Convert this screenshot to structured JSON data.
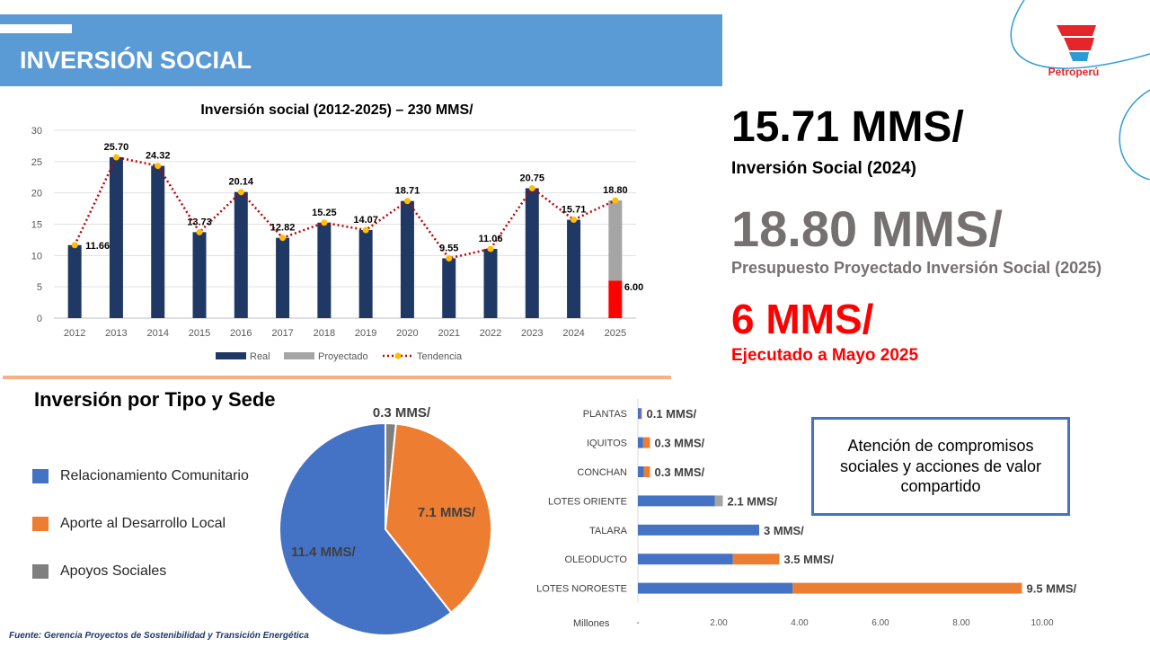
{
  "header": {
    "title": "INVERSIÓN SOCIAL"
  },
  "logo": {
    "name": "Petroperú"
  },
  "kpis": [
    {
      "value": "15.71 MMS/",
      "label": "Inversión Social (2024)"
    },
    {
      "value": "18.80 MMS/",
      "label": "Presupuesto Proyectado Inversión Social (2025)"
    },
    {
      "value": "6 MMS/",
      "label": "Ejecutado a Mayo 2025"
    }
  ],
  "section2_title": "Inversión por Tipo y Sede",
  "callout": "Atención de compromisos sociales y acciones de valor compartido",
  "source": "Fuente: Gerencia Proyectos de Sostenibilidad y Transición Energética",
  "colors": {
    "navy": "#203864",
    "gray": "#a5a5a5",
    "red": "#ff0000",
    "blue": "#4472c4",
    "orange": "#ed7d31",
    "pie_gray": "#7f7f7f",
    "trend": "#c00000",
    "marker": "#ffc000",
    "header": "#5b9bd5"
  },
  "chart_data": [
    {
      "type": "bar",
      "title": "Inversión social (2012-2025) – 230 MMS/",
      "categories": [
        "2012",
        "2013",
        "2014",
        "2015",
        "2016",
        "2017",
        "2018",
        "2019",
        "2020",
        "2021",
        "2022",
        "2023",
        "2024",
        "2025"
      ],
      "series": [
        {
          "name": "Real",
          "values": [
            11.66,
            25.7,
            24.32,
            13.73,
            20.14,
            12.82,
            15.25,
            14.07,
            18.71,
            9.55,
            11.06,
            20.75,
            15.71,
            6.0
          ]
        },
        {
          "name": "Proyectado",
          "values": [
            0,
            0,
            0,
            0,
            0,
            0,
            0,
            0,
            0,
            0,
            0,
            0,
            0,
            12.8
          ]
        },
        {
          "name": "Tendencia",
          "type": "line",
          "values": [
            11.66,
            25.7,
            24.32,
            13.73,
            20.14,
            12.82,
            15.25,
            14.07,
            18.71,
            9.55,
            11.06,
            20.75,
            15.71,
            18.8
          ]
        }
      ],
      "data_labels": [
        "11.66",
        "25.70",
        "24.32",
        "13.73",
        "20.14",
        "12.82",
        "15.25",
        "14.07",
        "18.71",
        "9.55",
        "11.06",
        "20.75",
        "15.71",
        "18.80"
      ],
      "extra_label": "6.00",
      "ylim": [
        0,
        30
      ],
      "yticks": [
        "0",
        "5",
        "10",
        "15",
        "20",
        "25",
        "30"
      ],
      "legend": "bottom"
    },
    {
      "type": "pie",
      "slices": [
        {
          "name": "Relacionamiento Comunitario",
          "value": 11.4,
          "label": "11.4 MMS/"
        },
        {
          "name": "Aporte al Desarrollo Local",
          "value": 7.1,
          "label": "7.1 MMS/"
        },
        {
          "name": "Apoyos Sociales",
          "value": 0.3,
          "label": "0.3 MMS/"
        }
      ],
      "legend": "left"
    },
    {
      "type": "bar",
      "orientation": "horizontal",
      "stacked": true,
      "categories": [
        "PLANTAS",
        "IQUITOS",
        "CONCHAN",
        "LOTES ORIENTE",
        "TALARA",
        "OLEODUCTO",
        "LOTES NOROESTE"
      ],
      "series": [
        {
          "name": "Relacionamiento Comunitario",
          "values": [
            0.08,
            0.13,
            0.15,
            1.9,
            3.0,
            2.35,
            3.83
          ]
        },
        {
          "name": "Aporte al Desarrollo Local",
          "values": [
            0.02,
            0.17,
            0.15,
            0.0,
            0.0,
            1.15,
            5.67
          ]
        },
        {
          "name": "Apoyos Sociales",
          "values": [
            0.0,
            0.0,
            0.0,
            0.2,
            0.0,
            0.0,
            0.0
          ]
        }
      ],
      "totals_labels": [
        "0.1 MMS/",
        "0.3 MMS/",
        "0.3 MMS/",
        "2.1 MMS/",
        "3 MMS/",
        "3.5 MMS/",
        "9.5 MMS/"
      ],
      "xlabel": "Millones",
      "xticks": [
        "-",
        "2.00",
        "4.00",
        "6.00",
        "8.00",
        "10.00"
      ],
      "xlim": [
        0,
        10
      ]
    }
  ]
}
